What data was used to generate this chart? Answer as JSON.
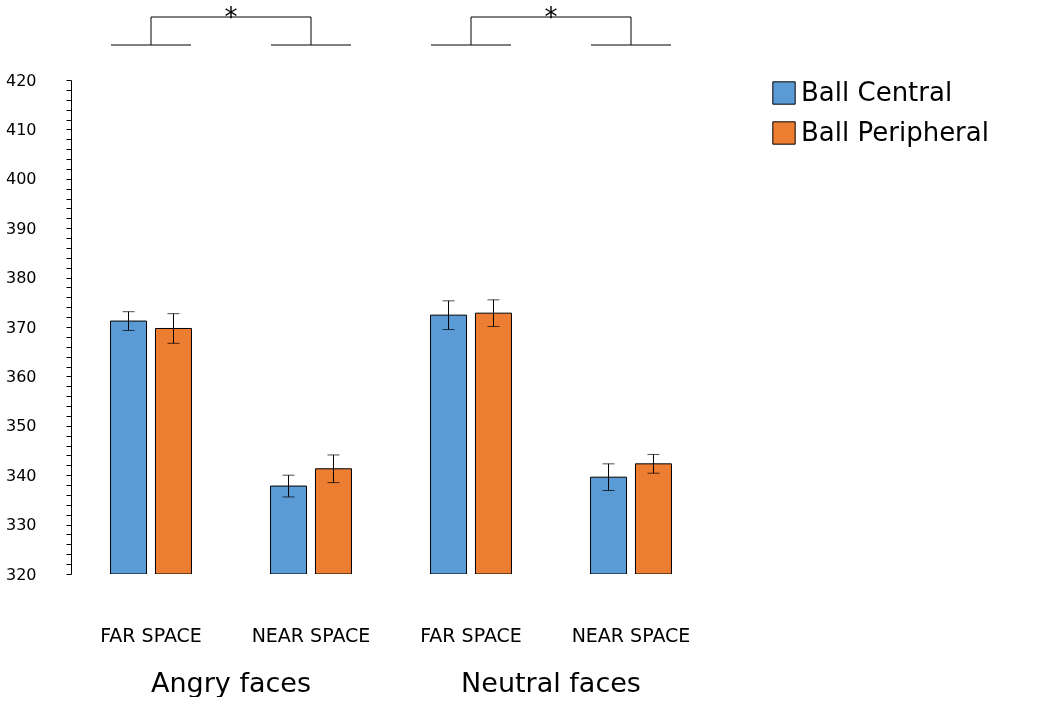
{
  "chart_data": {
    "type": "bar",
    "categories": [
      "FAR SPACE",
      "NEAR SPACE",
      "FAR SPACE",
      "NEAR SPACE"
    ],
    "series": [
      {
        "name": "Ball Central",
        "color": "#5b9bd5",
        "values": [
          371.2,
          337.8,
          372.4,
          339.6
        ],
        "errors": [
          1.9,
          2.2,
          2.9,
          2.7
        ]
      },
      {
        "name": "Ball Peripheral",
        "color": "#ed7d31",
        "values": [
          369.7,
          341.3,
          372.8,
          342.3
        ],
        "errors": [
          3.0,
          2.8,
          2.7,
          1.9
        ]
      }
    ],
    "ylim": [
      320,
      420
    ],
    "yticks": [
      320,
      {
        "value": 322,
        "label": null
      },
      {
        "value": 324,
        "label": null
      },
      {
        "value": 326,
        "label": null
      },
      {
        "value": 328,
        "label": null
      },
      330,
      {
        "value": 332,
        "label": null
      },
      {
        "value": 334,
        "label": null
      },
      {
        "value": 336,
        "label": null
      },
      {
        "value": 338,
        "label": null
      },
      340,
      {
        "value": 342,
        "label": null
      },
      {
        "value": 344,
        "label": null
      },
      {
        "value": 346,
        "label": null
      },
      {
        "value": 348,
        "label": null
      },
      350,
      {
        "value": 352,
        "label": null
      },
      {
        "value": 354,
        "label": null
      },
      {
        "value": 356,
        "label": null
      },
      {
        "value": 358,
        "label": null
      },
      360,
      {
        "value": 362,
        "label": null
      },
      {
        "value": 364,
        "label": null
      },
      {
        "value": 366,
        "label": null
      },
      {
        "value": 368,
        "label": null
      },
      370,
      {
        "value": 372,
        "label": null
      },
      {
        "value": 374,
        "label": null
      },
      {
        "value": 376,
        "label": null
      },
      {
        "value": 378,
        "label": null
      },
      380,
      {
        "value": 382,
        "label": null
      },
      {
        "value": 384,
        "label": null
      },
      {
        "value": 386,
        "label": null
      },
      {
        "value": 388,
        "label": null
      },
      390,
      {
        "value": 392,
        "label": null
      },
      {
        "value": 394,
        "label": null
      },
      {
        "value": 396,
        "label": null
      },
      {
        "value": 398,
        "label": null
      },
      400,
      {
        "value": 402,
        "label": null
      },
      {
        "value": 404,
        "label": null
      },
      {
        "value": 406,
        "label": null
      },
      {
        "value": 408,
        "label": null
      },
      410,
      {
        "value": 412,
        "label": null
      },
      {
        "value": 414,
        "label": null
      },
      {
        "value": 416,
        "label": null
      },
      {
        "value": 418,
        "label": null
      },
      420
    ],
    "annotations": [
      "*",
      "*",
      "Angry faces",
      "Neutral faces"
    ],
    "grid": false,
    "legend": "top right"
  }
}
